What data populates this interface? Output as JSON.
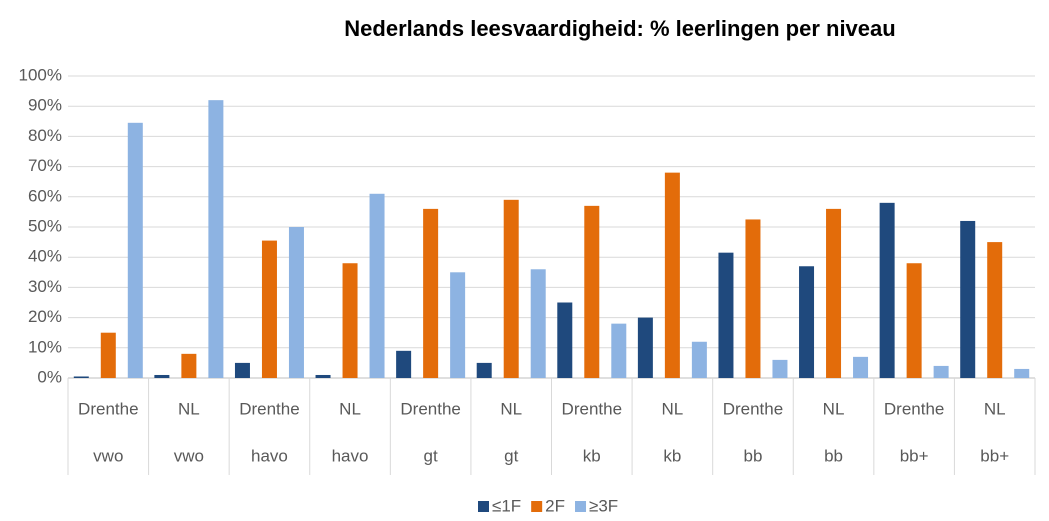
{
  "chart_data": {
    "type": "bar",
    "title": "Nederlands leesvaardigheid: % leerlingen per niveau",
    "categories": [
      "Drenthe",
      "NL",
      "Drenthe",
      "NL",
      "Drenthe",
      "NL",
      "Drenthe",
      "NL",
      "Drenthe",
      "NL",
      "Drenthe",
      "NL"
    ],
    "category_groups": [
      "vwo",
      "vwo",
      "havo",
      "havo",
      "gt",
      "gt",
      "kb",
      "kb",
      "bb",
      "bb",
      "bb+",
      "bb+"
    ],
    "series": [
      {
        "name": "≤1F",
        "color": "#1f497d",
        "values": [
          0.5,
          1,
          5,
          1,
          9,
          5,
          25,
          20,
          41.5,
          37,
          58,
          52
        ]
      },
      {
        "name": "2F",
        "color": "#e36c0a",
        "values": [
          15,
          8,
          45.5,
          38,
          56,
          59,
          57,
          68,
          52.5,
          56,
          38,
          45
        ]
      },
      {
        "name": "≥3F",
        "color": "#8db3e2",
        "values": [
          84.5,
          92,
          50,
          61,
          35,
          36,
          18,
          12,
          6,
          7,
          4,
          3
        ]
      }
    ],
    "ylim": [
      0,
      100
    ],
    "yticks": [
      {
        "value": 0,
        "label": "0%"
      },
      {
        "value": 10,
        "label": "10%"
      },
      {
        "value": 20,
        "label": "20%"
      },
      {
        "value": 30,
        "label": "30%"
      },
      {
        "value": 40,
        "label": "40%"
      },
      {
        "value": 50,
        "label": "50%"
      },
      {
        "value": 60,
        "label": "60%"
      },
      {
        "value": 70,
        "label": "70%"
      },
      {
        "value": 80,
        "label": "80%"
      },
      {
        "value": 90,
        "label": "90%"
      },
      {
        "value": 100,
        "label": "100%"
      }
    ],
    "grid": true,
    "legend": "bottom"
  }
}
